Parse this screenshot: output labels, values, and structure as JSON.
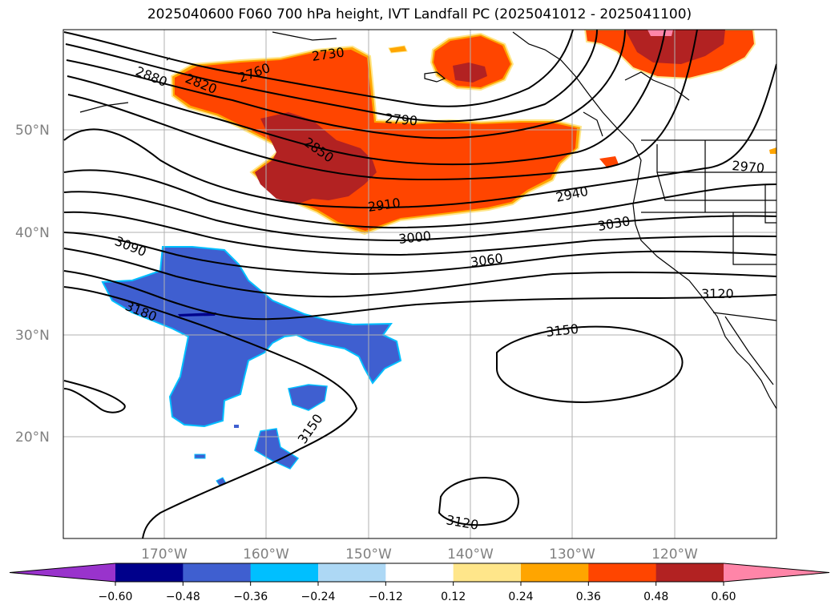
{
  "title": "2025040600 F060 700 hPa height, IVT Landfall PC (2025041012 - 2025041100)",
  "lat_labels": [
    "50°N",
    "40°N",
    "30°N",
    "20°N"
  ],
  "lon_labels": [
    "170°W",
    "160°W",
    "150°W",
    "140°W",
    "130°W",
    "120°W"
  ],
  "contour_labels": [
    "2880",
    "2820",
    "2760",
    "2730",
    "2790",
    "2850",
    "2910",
    "2940",
    "2970",
    "3000",
    "3030",
    "3060",
    "3090",
    "3120",
    "3150",
    "3180",
    "3150",
    "3120"
  ],
  "colorbar": {
    "ticks": [
      "−0.60",
      "−0.48",
      "−0.36",
      "−0.24",
      "−0.12",
      "0.12",
      "0.24",
      "0.36",
      "0.48",
      "0.60"
    ],
    "colors": [
      "#9933cc",
      "#00008b",
      "#3f5fd0",
      "#00bfff",
      "#add8f5",
      "#ffffff",
      "#ffe68a",
      "#ffa500",
      "#ff4500",
      "#b22222",
      "#ff85a8"
    ]
  },
  "chart_data": {
    "type": "contour-map",
    "variable": "700 hPa geopotential height (m) with IVT landfall PC shading",
    "lat_range": [
      10,
      60
    ],
    "lon_range": [
      -180,
      -110
    ],
    "contour_levels": [
      2730,
      2760,
      2790,
      2820,
      2850,
      2880,
      2910,
      2940,
      2970,
      3000,
      3030,
      3060,
      3090,
      3120,
      3150,
      3180
    ],
    "shading_levels": [
      -0.6,
      -0.48,
      -0.36,
      -0.24,
      -0.12,
      0.12,
      0.24,
      0.36,
      0.48,
      0.6
    ],
    "grid": true
  }
}
